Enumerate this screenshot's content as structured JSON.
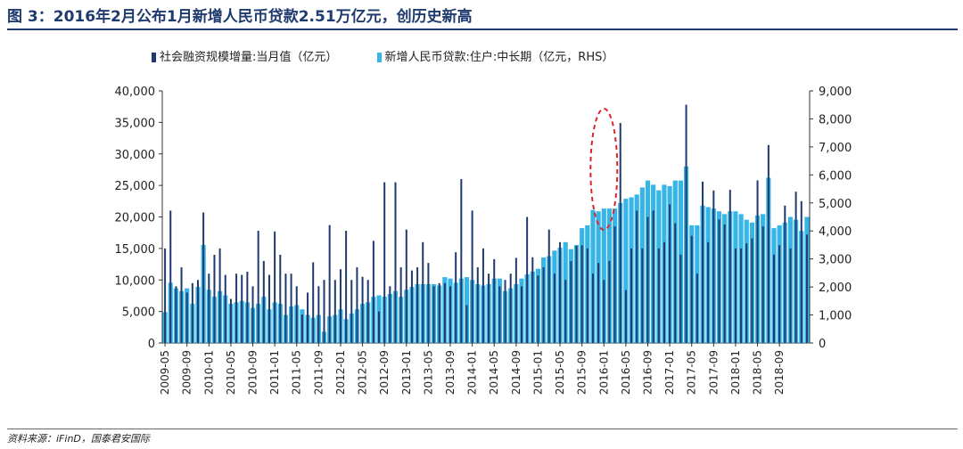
{
  "title": "图 3：2016年2月公布1月新增人民币贷款2.51万亿元，创历史新高",
  "source": "资料来源：iFinD，国泰君安国际",
  "colors": {
    "tsf": "#1f3a6e",
    "loan": "#36b5e6",
    "highlight": "#d9262a"
  },
  "chart_data": {
    "type": "bar",
    "series": [
      {
        "name": "社会融资规模增量:当月值（亿元）",
        "axis": "left",
        "color": "#1f3a6e"
      },
      {
        "name": "新增人民币贷款:住户:中长期（亿元，RHS）",
        "axis": "right",
        "color": "#36b5e6"
      }
    ],
    "x_start": "2009-05",
    "x_tick_labels": [
      "2009-05",
      "2009-09",
      "2010-01",
      "2010-05",
      "2010-09",
      "2011-01",
      "2011-05",
      "2011-09",
      "2012-01",
      "2012-05",
      "2012-09",
      "2013-01",
      "2013-05",
      "2013-09",
      "2014-01",
      "2014-05",
      "2014-09",
      "2015-01",
      "2015-05",
      "2015-09",
      "2016-01",
      "2016-05",
      "2016-09",
      "2017-01",
      "2017-05",
      "2017-09",
      "2018-01",
      "2018-05",
      "2018-09"
    ],
    "tsf_values": [
      15000,
      21000,
      9000,
      12000,
      8000,
      9500,
      10000,
      20700,
      11000,
      14000,
      15000,
      10800,
      7000,
      11000,
      10800,
      11300,
      9000,
      17800,
      13000,
      10800,
      17700,
      14000,
      11000,
      11000,
      9000,
      4500,
      8000,
      12800,
      9000,
      10000,
      18700,
      10000,
      11700,
      17800,
      10000,
      12000,
      10500,
      10000,
      16200,
      5000,
      25500,
      9000,
      25500,
      12000,
      18000,
      11500,
      12000,
      16000,
      12700,
      9000,
      9500,
      9500,
      9000,
      14400,
      26000,
      6000,
      21000,
      12000,
      15000,
      11000,
      13300,
      9000,
      10000,
      11000,
      13500,
      9000,
      20000,
      13600,
      10700,
      12000,
      18000,
      11000,
      16000,
      10000,
      13000,
      15400,
      15500,
      15000,
      11000,
      12700,
      10000,
      13000,
      18500,
      34900,
      8400,
      15000,
      21000,
      15000,
      20000,
      21000,
      15000,
      16000,
      22000,
      19000,
      14000,
      37800,
      17000,
      11000,
      25600,
      16000,
      24200,
      19600,
      18800,
      24300,
      15000,
      15000,
      15800,
      16600,
      25800,
      18500,
      31400,
      14000,
      15500,
      21800,
      15000,
      24000,
      22500,
      17200
    ],
    "loan_values": [
      1100,
      2150,
      1950,
      1850,
      1950,
      1400,
      2000,
      3500,
      1900,
      1650,
      1850,
      1700,
      1400,
      1450,
      1500,
      1450,
      1250,
      1400,
      1650,
      1200,
      1450,
      1400,
      1000,
      1300,
      1350,
      1200,
      1000,
      900,
      1000,
      400,
      950,
      1000,
      1200,
      850,
      1050,
      1200,
      1400,
      1450,
      1650,
      1700,
      1650,
      1750,
      1850,
      1650,
      1900,
      2000,
      2100,
      2100,
      2100,
      2100,
      2050,
      2350,
      2300,
      2150,
      2300,
      2350,
      2250,
      2100,
      2050,
      2100,
      2300,
      2300,
      1850,
      1950,
      2100,
      2300,
      2450,
      2550,
      2650,
      3050,
      3100,
      3300,
      3400,
      3600,
      3350,
      3500,
      4100,
      4200,
      4750,
      4700,
      4800,
      4800,
      4800,
      5000,
      5150,
      5200,
      5300,
      5550,
      5800,
      5650,
      5450,
      5650,
      5600,
      5800,
      5800,
      6300,
      4200,
      4200,
      4900,
      4850,
      4800,
      4700,
      4600,
      4700,
      4700,
      4600,
      4400,
      4300,
      4550,
      4600,
      5900,
      4100,
      4200,
      4300,
      4500,
      4400,
      4000,
      4500
    ],
    "y_left": {
      "range": [
        0,
        40000
      ],
      "ticks": [
        "0",
        "5,000",
        "10,000",
        "15,000",
        "20,000",
        "25,000",
        "30,000",
        "35,000",
        "40,000"
      ]
    },
    "y_right": {
      "range": [
        0,
        9000
      ],
      "ticks": [
        "0",
        "1,000",
        "2,000",
        "3,000",
        "4,000",
        "5,000",
        "6,000",
        "7,000",
        "8,000",
        "9,000"
      ]
    },
    "annotation": "dashed ellipse highlighting 2016-01"
  }
}
